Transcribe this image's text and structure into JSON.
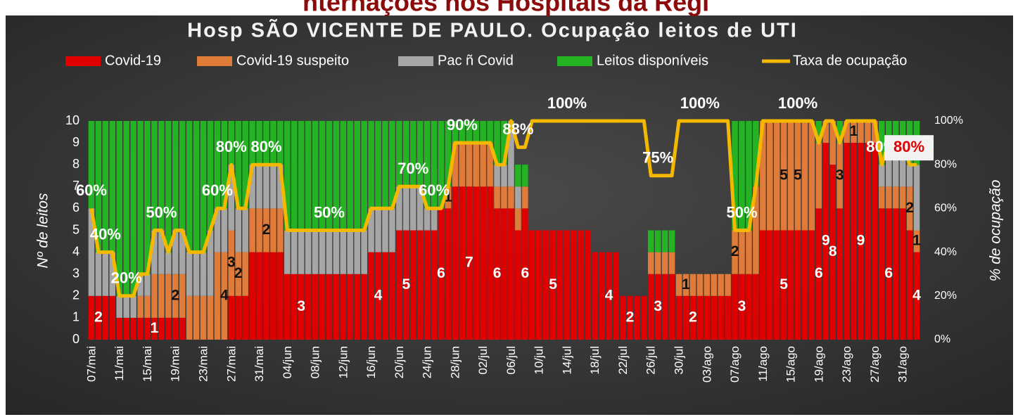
{
  "header_text": "nternações nos Hospitais da Regi",
  "chart_data": {
    "type": "bar",
    "stacked": true,
    "title": "Hosp SÃO VICENTE DE PAULO. Ocupação leitos de UTI",
    "ylabel": "Nº de leitos",
    "y2label": "% de ocupação",
    "ylim": [
      0,
      10
    ],
    "yticks": [
      0,
      1,
      2,
      3,
      4,
      5,
      6,
      7,
      8,
      9,
      10
    ],
    "y2lim": [
      0,
      100
    ],
    "y2ticks": [
      {
        "value": 0,
        "label": "0%"
      },
      {
        "value": 20,
        "label": "20%"
      },
      {
        "value": 40,
        "label": "40%"
      },
      {
        "value": 60,
        "label": "60%"
      },
      {
        "value": 80,
        "label": "80%"
      },
      {
        "value": 100,
        "label": "100%"
      }
    ],
    "categories": [
      "07/mai",
      null,
      null,
      null,
      "11/mai",
      null,
      null,
      null,
      "15/mai",
      null,
      null,
      null,
      "19/mai",
      null,
      null,
      null,
      "23/mai",
      null,
      null,
      null,
      "27/mai",
      null,
      null,
      null,
      "31/mai",
      null,
      null,
      null,
      "04/jun",
      null,
      null,
      null,
      "08/jun",
      null,
      null,
      null,
      "12/jun",
      null,
      null,
      null,
      "16/jun",
      null,
      null,
      null,
      "20/jun",
      null,
      null,
      null,
      "24/jun",
      null,
      null,
      null,
      "28/jun",
      null,
      null,
      null,
      "02/jul",
      null,
      null,
      null,
      "06/jul",
      null,
      null,
      null,
      "10/jul",
      null,
      null,
      null,
      "14/jul",
      null,
      null,
      null,
      "18/jul",
      null,
      null,
      null,
      "22/jul",
      null,
      null,
      null,
      "26/jul",
      null,
      null,
      null,
      "30/jul",
      null,
      null,
      null,
      "03/ago",
      null,
      null,
      null,
      "07/ago",
      null,
      null,
      null,
      "11/ago",
      null,
      null,
      null,
      "15/ago",
      null,
      null,
      null,
      "19/ago",
      null,
      null,
      null,
      "23/ago",
      null,
      null,
      null,
      "27/ago",
      null,
      null,
      null,
      "31/ago",
      null,
      null
    ],
    "series": [
      {
        "name": "Covid-19",
        "color": "#e00000",
        "label_color": "#ffffff",
        "values": [
          2,
          2,
          2,
          2,
          1,
          1,
          1,
          1,
          1,
          1,
          1,
          1,
          1,
          1,
          0,
          0,
          0,
          0,
          0,
          0,
          2,
          2,
          2,
          4,
          4,
          4,
          4,
          4,
          3,
          3,
          3,
          3,
          3,
          3,
          3,
          3,
          3,
          3,
          3,
          3,
          4,
          4,
          4,
          4,
          5,
          5,
          5,
          5,
          5,
          5,
          6,
          6,
          7,
          7,
          7,
          7,
          7,
          7,
          6,
          6,
          6,
          5,
          6,
          5,
          5,
          5,
          5,
          5,
          5,
          5,
          5,
          5,
          4,
          4,
          4,
          4,
          2,
          2,
          2,
          2,
          3,
          3,
          3,
          3,
          2,
          2,
          2,
          2,
          2,
          2,
          2,
          2,
          3,
          3,
          3,
          3,
          5,
          5,
          5,
          5,
          5,
          5,
          5,
          5,
          6,
          9,
          8,
          6,
          9,
          9,
          9,
          9,
          9,
          6,
          6,
          6,
          6,
          5,
          4
        ],
        "value_labels": [
          null,
          "2",
          null,
          null,
          null,
          null,
          null,
          null,
          null,
          "1",
          null,
          null,
          null,
          null,
          null,
          null,
          null,
          null,
          null,
          null,
          null,
          null,
          null,
          null,
          null,
          null,
          null,
          null,
          null,
          null,
          "3",
          null,
          null,
          null,
          null,
          null,
          null,
          null,
          null,
          null,
          null,
          "4",
          null,
          null,
          null,
          "5",
          null,
          null,
          null,
          null,
          "6",
          null,
          null,
          null,
          "7",
          null,
          null,
          null,
          "6",
          null,
          null,
          null,
          "6",
          null,
          null,
          null,
          "5",
          null,
          null,
          null,
          null,
          null,
          null,
          null,
          "4",
          null,
          null,
          "2",
          null,
          null,
          null,
          "3",
          null,
          null,
          null,
          null,
          "2",
          null,
          null,
          null,
          null,
          null,
          null,
          "3",
          null,
          null,
          null,
          null,
          null,
          "5",
          null,
          null,
          null,
          null,
          "6",
          "9",
          "8",
          null,
          null,
          null,
          "9",
          null,
          null,
          null,
          "6",
          null,
          null,
          null,
          "4"
        ]
      },
      {
        "name": "Covid-19 suspeito",
        "color": "#e07b39",
        "label_color": "#111111",
        "values": [
          0,
          0,
          0,
          0,
          0,
          0,
          0,
          1,
          1,
          2,
          2,
          2,
          2,
          2,
          2,
          2,
          2,
          2,
          4,
          4,
          3,
          2,
          2,
          2,
          2,
          2,
          2,
          2,
          0,
          0,
          0,
          0,
          0,
          0,
          0,
          0,
          0,
          0,
          0,
          0,
          0,
          0,
          0,
          0,
          0,
          0,
          0,
          0,
          0,
          0,
          0,
          1,
          2,
          2,
          2,
          2,
          2,
          2,
          1,
          1,
          1,
          1,
          1,
          0,
          0,
          0,
          0,
          0,
          0,
          0,
          0,
          0,
          0,
          0,
          0,
          0,
          0,
          0,
          0,
          0,
          1,
          1,
          1,
          1,
          1,
          1,
          1,
          1,
          1,
          1,
          1,
          1,
          2,
          2,
          2,
          4,
          5,
          5,
          5,
          5,
          5,
          5,
          5,
          5,
          3,
          1,
          2,
          3,
          1,
          1,
          1,
          1,
          1,
          1,
          1,
          1,
          1,
          2,
          1
        ],
        "value_labels": [
          null,
          null,
          null,
          null,
          null,
          null,
          null,
          null,
          null,
          null,
          null,
          null,
          "2",
          null,
          null,
          null,
          null,
          null,
          null,
          "4",
          "3",
          "2",
          null,
          null,
          null,
          "2",
          null,
          null,
          null,
          null,
          null,
          null,
          null,
          null,
          null,
          null,
          null,
          null,
          null,
          null,
          null,
          null,
          null,
          null,
          null,
          null,
          null,
          null,
          null,
          null,
          null,
          "1",
          null,
          null,
          null,
          null,
          null,
          null,
          null,
          null,
          null,
          null,
          null,
          null,
          null,
          null,
          null,
          null,
          null,
          null,
          null,
          null,
          null,
          null,
          null,
          null,
          null,
          null,
          null,
          null,
          null,
          null,
          null,
          null,
          null,
          "1",
          null,
          null,
          null,
          null,
          null,
          null,
          "2",
          null,
          null,
          null,
          null,
          null,
          null,
          "5",
          null,
          "5",
          null,
          null,
          null,
          null,
          null,
          "3",
          null,
          "1",
          null,
          null,
          null,
          null,
          null,
          null,
          null,
          "2",
          "1"
        ]
      },
      {
        "name": "Pac ñ Covid",
        "color": "#a6a6a6",
        "values": [
          4,
          2,
          2,
          2,
          1,
          1,
          1,
          1,
          1,
          2,
          2,
          1,
          2,
          2,
          2,
          2,
          2,
          3,
          2,
          2,
          3,
          2,
          2,
          2,
          2,
          2,
          2,
          2,
          2,
          2,
          2,
          2,
          2,
          2,
          2,
          2,
          2,
          2,
          2,
          2,
          2,
          2,
          2,
          2,
          2,
          2,
          2,
          2,
          1,
          1,
          0,
          0,
          0,
          0,
          0,
          0,
          0,
          0,
          1,
          1,
          3,
          1,
          0,
          0,
          0,
          0,
          0,
          0,
          0,
          0,
          0,
          0,
          0,
          0,
          0,
          0,
          0,
          0,
          0,
          0,
          0,
          0,
          0,
          0,
          0,
          0,
          0,
          0,
          0,
          0,
          0,
          0,
          0,
          0,
          0,
          0,
          0,
          0,
          0,
          0,
          0,
          0,
          0,
          0,
          0,
          0,
          0,
          0,
          0,
          0,
          0,
          0,
          0,
          1,
          2,
          2,
          2,
          1,
          3
        ]
      },
      {
        "name": "Leitos disponíveis",
        "color": "#23b323",
        "values": [
          4,
          6,
          6,
          6,
          8,
          8,
          8,
          7,
          7,
          5,
          5,
          6,
          5,
          5,
          6,
          6,
          6,
          5,
          4,
          4,
          2,
          4,
          4,
          2,
          2,
          2,
          2,
          2,
          5,
          5,
          5,
          5,
          5,
          5,
          5,
          5,
          5,
          5,
          5,
          5,
          4,
          4,
          4,
          4,
          3,
          3,
          3,
          3,
          4,
          4,
          4,
          3,
          1,
          1,
          1,
          1,
          1,
          1,
          2,
          2,
          0,
          1,
          1,
          0,
          0,
          0,
          0,
          0,
          0,
          0,
          0,
          0,
          0,
          0,
          0,
          0,
          0,
          0,
          0,
          0,
          1,
          1,
          1,
          1,
          0,
          0,
          0,
          0,
          0,
          0,
          0,
          0,
          5,
          5,
          5,
          3,
          0,
          0,
          0,
          0,
          0,
          0,
          0,
          0,
          1,
          0,
          0,
          1,
          0,
          0,
          0,
          0,
          0,
          2,
          1,
          1,
          1,
          2,
          2
        ]
      },
      {
        "name": "Taxa de ocupação",
        "type": "line",
        "axis": "y2",
        "color": "#f5b800",
        "values": [
          60,
          40,
          40,
          40,
          20,
          20,
          20,
          30,
          30,
          50,
          50,
          40,
          50,
          50,
          40,
          40,
          40,
          50,
          60,
          60,
          80,
          60,
          60,
          80,
          80,
          80,
          80,
          80,
          50,
          50,
          50,
          50,
          50,
          50,
          50,
          50,
          50,
          50,
          50,
          50,
          60,
          60,
          60,
          60,
          70,
          70,
          70,
          70,
          60,
          60,
          60,
          70,
          90,
          90,
          90,
          90,
          90,
          90,
          80,
          80,
          100,
          88,
          88,
          100,
          100,
          100,
          100,
          100,
          100,
          100,
          100,
          100,
          100,
          100,
          100,
          100,
          100,
          100,
          100,
          100,
          75,
          75,
          75,
          75,
          100,
          100,
          100,
          100,
          100,
          100,
          100,
          100,
          50,
          50,
          50,
          70,
          100,
          100,
          100,
          100,
          100,
          100,
          100,
          100,
          90,
          100,
          100,
          90,
          100,
          100,
          100,
          100,
          100,
          80,
          90,
          90,
          90,
          80,
          80
        ],
        "value_labels": [
          "60%",
          null,
          "40%",
          null,
          null,
          "20%",
          null,
          null,
          null,
          null,
          "50%",
          null,
          null,
          null,
          null,
          null,
          null,
          null,
          "60%",
          null,
          "80%",
          null,
          null,
          null,
          null,
          "80%",
          null,
          null,
          null,
          null,
          null,
          null,
          null,
          null,
          "50%",
          null,
          null,
          null,
          null,
          null,
          null,
          null,
          null,
          null,
          null,
          null,
          "70%",
          null,
          null,
          "60%",
          null,
          null,
          null,
          "90%",
          null,
          null,
          null,
          null,
          null,
          null,
          null,
          "88%",
          null,
          null,
          null,
          null,
          null,
          null,
          "100%",
          null,
          null,
          null,
          null,
          null,
          null,
          null,
          null,
          null,
          null,
          null,
          null,
          "75%",
          null,
          null,
          null,
          null,
          null,
          "100%",
          null,
          null,
          null,
          null,
          null,
          "50%",
          null,
          null,
          null,
          null,
          null,
          null,
          null,
          "100%",
          null,
          null,
          null,
          null,
          null,
          null,
          null,
          null,
          null,
          null,
          null,
          "80%",
          null,
          null,
          null,
          null,
          "80%"
        ]
      }
    ]
  }
}
